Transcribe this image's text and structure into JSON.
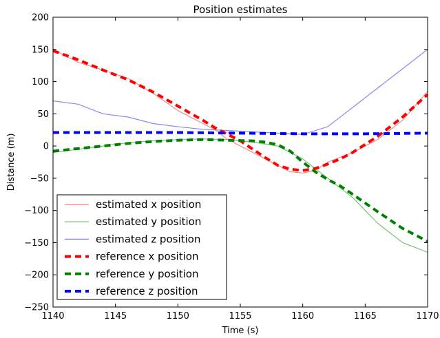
{
  "chart_data": {
    "type": "line",
    "title": "Position estimates",
    "xlabel": "Time (s)",
    "ylabel": "Distance (m)",
    "xlim": [
      1140,
      1170
    ],
    "ylim": [
      -250,
      200
    ],
    "xticks": [
      1140,
      1145,
      1150,
      1155,
      1160,
      1165,
      1170
    ],
    "yticks": [
      200,
      150,
      100,
      50,
      0,
      -50,
      -100,
      -150,
      -200,
      -250
    ],
    "xtick_labels": [
      "1140",
      "1145",
      "1150",
      "1155",
      "1160",
      "1165",
      "1170"
    ],
    "ytick_labels": [
      "200",
      "150",
      "100",
      "50",
      "0",
      "−50",
      "−100",
      "−150",
      "−200",
      "−250"
    ],
    "grid": false,
    "legend_position": "lower-left",
    "series": [
      {
        "name": "estimated x position",
        "style": "solid-thin",
        "color": "#f08080",
        "x": [
          1140,
          1142,
          1144,
          1146,
          1148,
          1150,
          1152,
          1153,
          1154,
          1156,
          1158,
          1159,
          1160,
          1161,
          1162,
          1164,
          1166,
          1168,
          1170
        ],
        "y": [
          150,
          130,
          118,
          105,
          82,
          55,
          35,
          25,
          10,
          -10,
          -30,
          -40,
          -42,
          -38,
          -25,
          -10,
          10,
          40,
          85
        ]
      },
      {
        "name": "estimated y position",
        "style": "solid-thin",
        "color": "#66bb66",
        "x": [
          1140,
          1142,
          1144,
          1146,
          1148,
          1150,
          1152,
          1154,
          1156,
          1158,
          1160,
          1162,
          1164,
          1166,
          1168,
          1170
        ],
        "y": [
          -10,
          -5,
          0,
          5,
          8,
          10,
          11,
          10,
          6,
          0,
          -20,
          -50,
          -80,
          -120,
          -150,
          -165
        ]
      },
      {
        "name": "estimated z position",
        "style": "solid-thin",
        "color": "#7b7bf0",
        "x": [
          1140,
          1142,
          1144,
          1146,
          1148,
          1150,
          1152,
          1154,
          1156,
          1158,
          1160,
          1162,
          1164,
          1166,
          1168,
          1170
        ],
        "y": [
          70,
          65,
          50,
          45,
          35,
          30,
          26,
          24,
          22,
          20,
          18,
          30,
          60,
          90,
          120,
          150
        ]
      },
      {
        "name": "reference x position",
        "style": "dashed-thick",
        "color": "#ff0000",
        "x": [
          1140,
          1142,
          1144,
          1146,
          1148,
          1150,
          1152,
          1153,
          1154,
          1155,
          1156,
          1157,
          1158,
          1159,
          1160,
          1161,
          1162,
          1163,
          1164,
          1166,
          1168,
          1170
        ],
        "y": [
          148,
          134,
          118,
          103,
          84,
          62,
          40,
          28,
          18,
          8,
          -5,
          -18,
          -30,
          -36,
          -38,
          -35,
          -28,
          -20,
          -10,
          15,
          45,
          80
        ]
      },
      {
        "name": "reference y position",
        "style": "dashed-thick",
        "color": "#008000",
        "x": [
          1140,
          1142,
          1144,
          1146,
          1148,
          1150,
          1152,
          1154,
          1156,
          1157,
          1158,
          1159,
          1160,
          1161,
          1162,
          1163,
          1164,
          1166,
          1168,
          1170
        ],
        "y": [
          -8,
          -4,
          0,
          4,
          7,
          9,
          10,
          9,
          8,
          6,
          2,
          -8,
          -25,
          -40,
          -52,
          -62,
          -75,
          -102,
          -128,
          -148
        ]
      },
      {
        "name": "reference z position",
        "style": "dashed-thick",
        "color": "#0000ff",
        "x": [
          1140,
          1145,
          1150,
          1155,
          1160,
          1165,
          1170
        ],
        "y": [
          21,
          21,
          21,
          20,
          19,
          19,
          20
        ]
      }
    ]
  }
}
